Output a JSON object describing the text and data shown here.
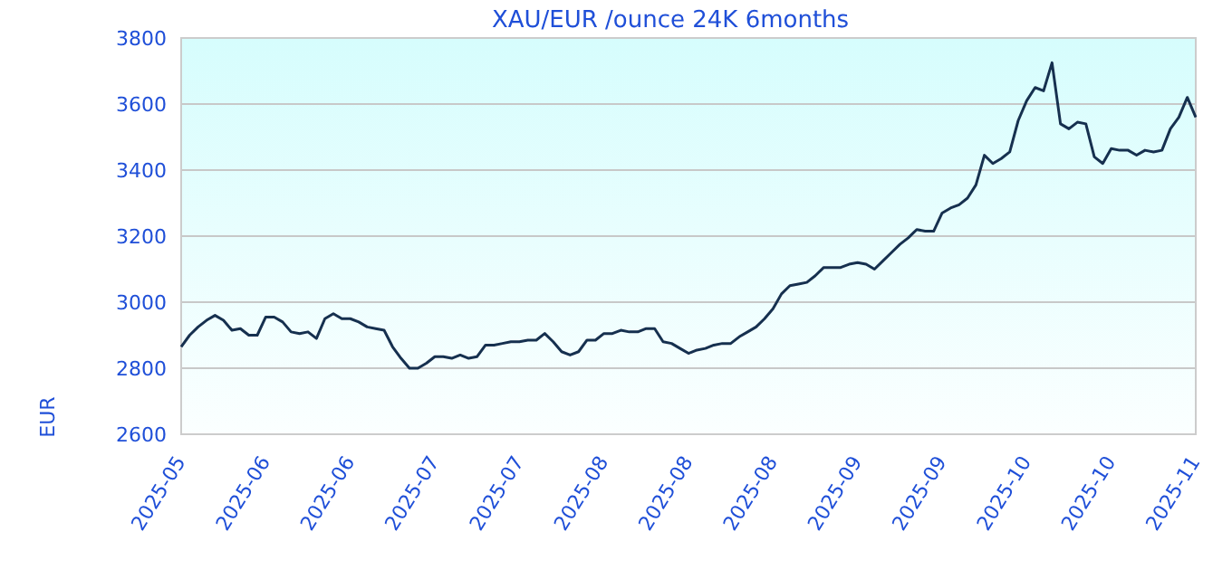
{
  "chart_data": {
    "type": "line",
    "title": "XAU/EUR /ounce 24K 6months",
    "ylabel": "EUR",
    "ylim": [
      2600,
      3800
    ],
    "yticks": [
      2600,
      2800,
      3000,
      3200,
      3400,
      3600,
      3800
    ],
    "categories": [
      "2025-05",
      null,
      null,
      null,
      null,
      null,
      null,
      null,
      null,
      null,
      "2025-06",
      null,
      null,
      null,
      null,
      null,
      null,
      null,
      null,
      null,
      "2025-06",
      null,
      null,
      null,
      null,
      null,
      null,
      null,
      null,
      null,
      "2025-07",
      null,
      null,
      null,
      null,
      null,
      null,
      null,
      null,
      null,
      "2025-07",
      null,
      null,
      null,
      null,
      null,
      null,
      null,
      null,
      null,
      "2025-08",
      null,
      null,
      null,
      null,
      null,
      null,
      null,
      null,
      null,
      "2025-08",
      null,
      null,
      null,
      null,
      null,
      null,
      null,
      null,
      null,
      "2025-08",
      null,
      null,
      null,
      null,
      null,
      null,
      null,
      null,
      null,
      "2025-09",
      null,
      null,
      null,
      null,
      null,
      null,
      null,
      null,
      null,
      "2025-09",
      null,
      null,
      null,
      null,
      null,
      null,
      null,
      null,
      null,
      "2025-10",
      null,
      null,
      null,
      null,
      null,
      null,
      null,
      null,
      null,
      "2025-10",
      null,
      null,
      null,
      null,
      null,
      null,
      null,
      null,
      null,
      "2025-11"
    ],
    "grid": "y",
    "series": [
      {
        "color": "#16304f",
        "values": [
          2865,
          2900,
          2925,
          2945,
          2960,
          2945,
          2915,
          2920,
          2900,
          2900,
          2955,
          2955,
          2940,
          2910,
          2905,
          2910,
          2890,
          2950,
          2965,
          2950,
          2950,
          2940,
          2925,
          2920,
          2915,
          2865,
          2830,
          2800,
          2800,
          2815,
          2835,
          2835,
          2830,
          2840,
          2830,
          2835,
          2870,
          2870,
          2875,
          2880,
          2880,
          2885,
          2885,
          2905,
          2880,
          2850,
          2840,
          2850,
          2885,
          2885,
          2905,
          2905,
          2915,
          2910,
          2910,
          2920,
          2920,
          2880,
          2875,
          2860,
          2845,
          2855,
          2860,
          2870,
          2875,
          2875,
          2895,
          2910,
          2925,
          2950,
          2980,
          3025,
          3050,
          3055,
          3060,
          3080,
          3105,
          3105,
          3105,
          3115,
          3120,
          3115,
          3100,
          3125,
          3150,
          3175,
          3195,
          3220,
          3215,
          3215,
          3270,
          3285,
          3295,
          3315,
          3355,
          3445,
          3420,
          3435,
          3455,
          3550,
          3610,
          3650,
          3640,
          3725,
          3540,
          3525,
          3545,
          3540,
          3440,
          3420,
          3465,
          3460,
          3460,
          3445,
          3460,
          3455,
          3460,
          3525,
          3560,
          3620,
          3560
        ]
      }
    ]
  }
}
